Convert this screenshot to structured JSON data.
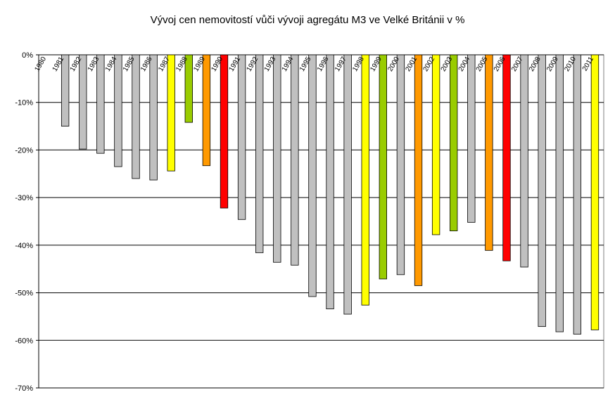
{
  "chart_data": {
    "type": "bar",
    "title": "Vývoj cen nemovitostí vůči vývoji agregátu M3 ve Velké Británii v %",
    "xlabel": "",
    "ylabel": "",
    "ylim": [
      -70,
      0
    ],
    "yticks": [
      0,
      -10,
      -20,
      -30,
      -40,
      -50,
      -60,
      -70
    ],
    "ytick_labels": [
      "0%",
      "-10%",
      "-20%",
      "-30%",
      "-40%",
      "-50%",
      "-60%",
      "-70%"
    ],
    "grid": true,
    "legend": "none",
    "categories": [
      "1980",
      "1981",
      "1982",
      "1983",
      "1984",
      "1985",
      "1986",
      "1987",
      "1988",
      "1989",
      "1990",
      "1991",
      "1992",
      "1993",
      "1994",
      "1995",
      "1996",
      "1997",
      "1998",
      "1999",
      "2000",
      "2001",
      "2002",
      "2003",
      "2004",
      "2005",
      "2006",
      "2007",
      "2008",
      "2009",
      "2010",
      "2011"
    ],
    "values": [
      0,
      -15,
      -19.8,
      -20.7,
      -23.5,
      -26,
      -26.3,
      -24.4,
      -14.2,
      -23.3,
      -32.2,
      -34.6,
      -41.6,
      -43.6,
      -44.2,
      -50.8,
      -53.4,
      -54.5,
      -52.6,
      -47.1,
      -46.2,
      -48.5,
      -37.8,
      -37,
      -35.2,
      -41.1,
      -43.3,
      -44.6,
      -57.1,
      -58.2,
      -58.7,
      -57.8
    ],
    "bar_colors": [
      "#c0c0c0",
      "#c0c0c0",
      "#c0c0c0",
      "#c0c0c0",
      "#c0c0c0",
      "#c0c0c0",
      "#c0c0c0",
      "#ffff00",
      "#99cc00",
      "#ff9900",
      "#ff0000",
      "#c0c0c0",
      "#c0c0c0",
      "#c0c0c0",
      "#c0c0c0",
      "#c0c0c0",
      "#c0c0c0",
      "#c0c0c0",
      "#ffff00",
      "#99cc00",
      "#c0c0c0",
      "#ff9900",
      "#ffff00",
      "#99cc00",
      "#c0c0c0",
      "#ff9900",
      "#ff0000",
      "#c0c0c0",
      "#c0c0c0",
      "#c0c0c0",
      "#c0c0c0",
      "#ffff00"
    ]
  }
}
